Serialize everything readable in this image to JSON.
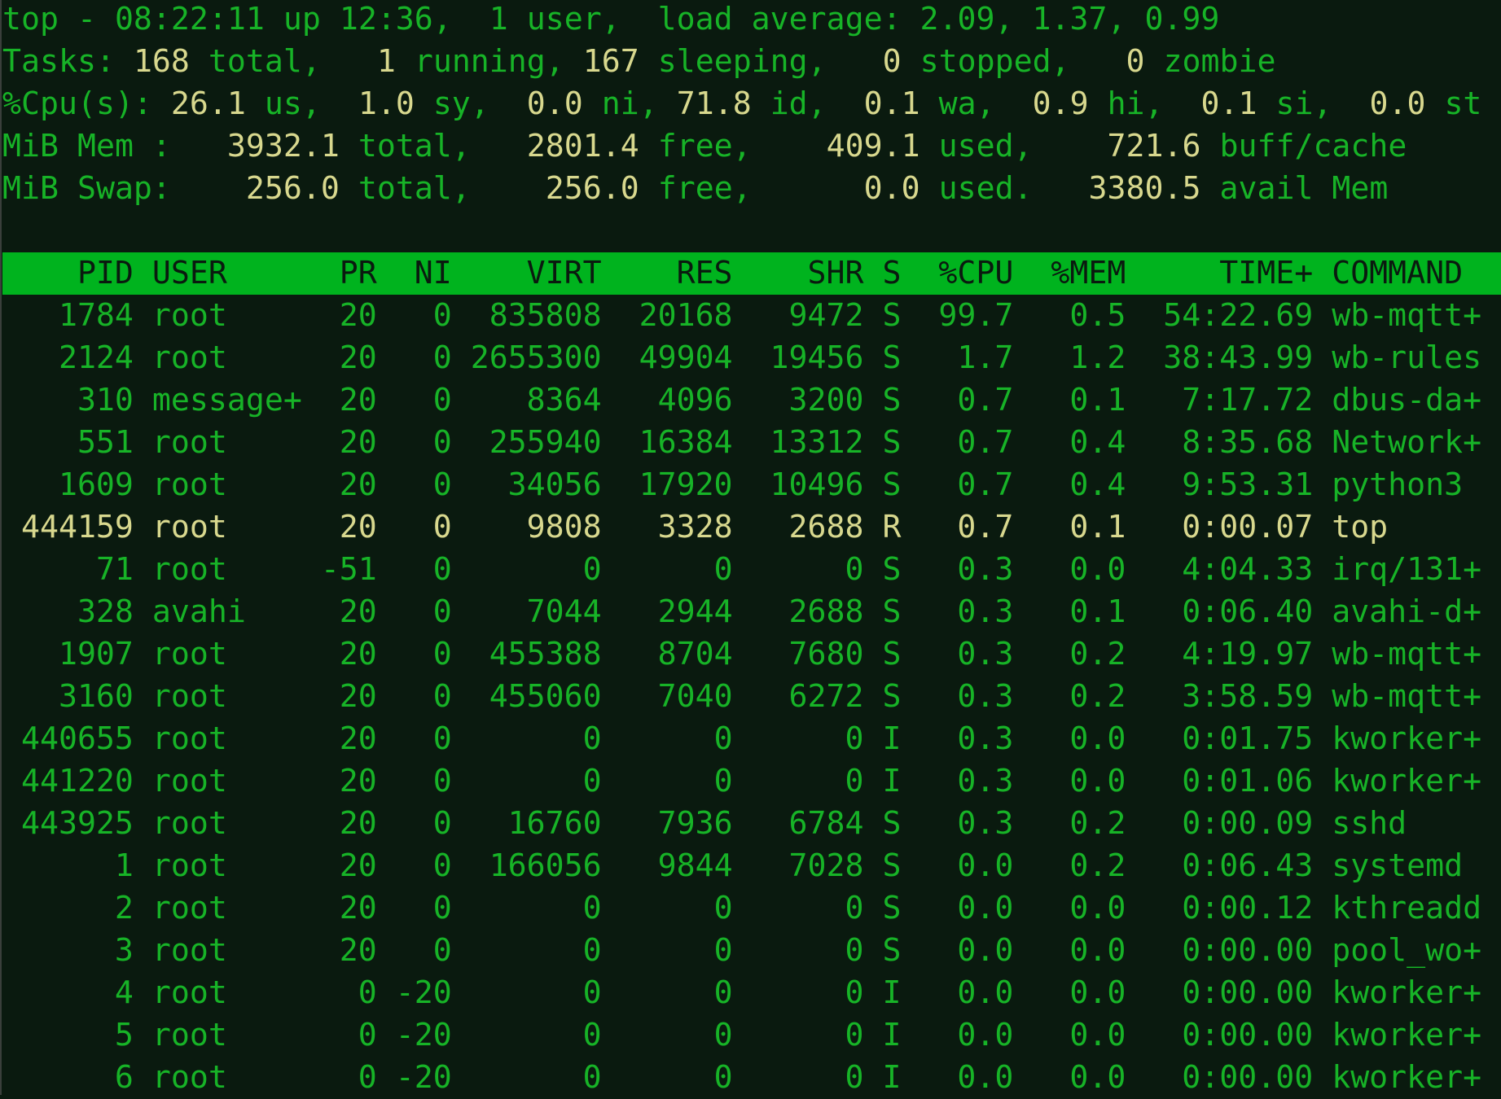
{
  "colors": {
    "background": "#0a1a0f",
    "text": "#17b327",
    "value": "#d8d88e",
    "header_bar": "#00b31e"
  },
  "summary": [
    [
      {
        "t": "top - 08:22:11 up 12:36,  1 user,  load average: 2.09, 1.37, 0.99",
        "c": "g"
      }
    ],
    [
      {
        "t": "Tasks: ",
        "c": "g"
      },
      {
        "t": "168",
        "c": "y"
      },
      {
        "t": " total,   ",
        "c": "g"
      },
      {
        "t": "1",
        "c": "y"
      },
      {
        "t": " running, ",
        "c": "g"
      },
      {
        "t": "167",
        "c": "y"
      },
      {
        "t": " sleeping,   ",
        "c": "g"
      },
      {
        "t": "0",
        "c": "y"
      },
      {
        "t": " stopped,   ",
        "c": "g"
      },
      {
        "t": "0",
        "c": "y"
      },
      {
        "t": " zombie",
        "c": "g"
      }
    ],
    [
      {
        "t": "%Cpu(s): ",
        "c": "g"
      },
      {
        "t": "26.1",
        "c": "y"
      },
      {
        "t": " us,  ",
        "c": "g"
      },
      {
        "t": "1.0",
        "c": "y"
      },
      {
        "t": " sy,  ",
        "c": "g"
      },
      {
        "t": "0.0",
        "c": "y"
      },
      {
        "t": " ni, ",
        "c": "g"
      },
      {
        "t": "71.8",
        "c": "y"
      },
      {
        "t": " id,  ",
        "c": "g"
      },
      {
        "t": "0.1",
        "c": "y"
      },
      {
        "t": " wa,  ",
        "c": "g"
      },
      {
        "t": "0.9",
        "c": "y"
      },
      {
        "t": " hi,  ",
        "c": "g"
      },
      {
        "t": "0.1",
        "c": "y"
      },
      {
        "t": " si,  ",
        "c": "g"
      },
      {
        "t": "0.0",
        "c": "y"
      },
      {
        "t": " st",
        "c": "g"
      }
    ],
    [
      {
        "t": "MiB Mem :   ",
        "c": "g"
      },
      {
        "t": "3932.1",
        "c": "y"
      },
      {
        "t": " total,   ",
        "c": "g"
      },
      {
        "t": "2801.4",
        "c": "y"
      },
      {
        "t": " free,    ",
        "c": "g"
      },
      {
        "t": "409.1",
        "c": "y"
      },
      {
        "t": " used,    ",
        "c": "g"
      },
      {
        "t": "721.6",
        "c": "y"
      },
      {
        "t": " buff/cache",
        "c": "g"
      }
    ],
    [
      {
        "t": "MiB Swap:    ",
        "c": "g"
      },
      {
        "t": "256.0",
        "c": "y"
      },
      {
        "t": " total,    ",
        "c": "g"
      },
      {
        "t": "256.0",
        "c": "y"
      },
      {
        "t": " free,      ",
        "c": "g"
      },
      {
        "t": "0.0",
        "c": "y"
      },
      {
        "t": " used.   ",
        "c": "g"
      },
      {
        "t": "3380.5",
        "c": "y"
      },
      {
        "t": " avail Mem",
        "c": "g"
      }
    ]
  ],
  "table": {
    "columns": [
      "PID",
      "USER",
      "PR",
      "NI",
      "VIRT",
      "RES",
      "SHR",
      "S",
      "%CPU",
      "%MEM",
      "TIME+",
      "COMMAND"
    ],
    "rows": [
      {
        "cells": [
          "1784",
          "root",
          "20",
          "0",
          "835808",
          "20168",
          "9472",
          "S",
          "99.7",
          "0.5",
          "54:22.69",
          "wb-mqtt+"
        ]
      },
      {
        "cells": [
          "2124",
          "root",
          "20",
          "0",
          "2655300",
          "49904",
          "19456",
          "S",
          "1.7",
          "1.2",
          "38:43.99",
          "wb-rules"
        ]
      },
      {
        "cells": [
          "310",
          "message+",
          "20",
          "0",
          "8364",
          "4096",
          "3200",
          "S",
          "0.7",
          "0.1",
          "7:17.72",
          "dbus-da+"
        ]
      },
      {
        "cells": [
          "551",
          "root",
          "20",
          "0",
          "255940",
          "16384",
          "13312",
          "S",
          "0.7",
          "0.4",
          "8:35.68",
          "Network+"
        ]
      },
      {
        "cells": [
          "1609",
          "root",
          "20",
          "0",
          "34056",
          "17920",
          "10496",
          "S",
          "0.7",
          "0.4",
          "9:53.31",
          "python3"
        ]
      },
      {
        "cells": [
          "444159",
          "root",
          "20",
          "0",
          "9808",
          "3328",
          "2688",
          "R",
          "0.7",
          "0.1",
          "0:00.07",
          "top"
        ],
        "highlight": true
      },
      {
        "cells": [
          "71",
          "root",
          "-51",
          "0",
          "0",
          "0",
          "0",
          "S",
          "0.3",
          "0.0",
          "4:04.33",
          "irq/131+"
        ]
      },
      {
        "cells": [
          "328",
          "avahi",
          "20",
          "0",
          "7044",
          "2944",
          "2688",
          "S",
          "0.3",
          "0.1",
          "0:06.40",
          "avahi-d+"
        ]
      },
      {
        "cells": [
          "1907",
          "root",
          "20",
          "0",
          "455388",
          "8704",
          "7680",
          "S",
          "0.3",
          "0.2",
          "4:19.97",
          "wb-mqtt+"
        ]
      },
      {
        "cells": [
          "3160",
          "root",
          "20",
          "0",
          "455060",
          "7040",
          "6272",
          "S",
          "0.3",
          "0.2",
          "3:58.59",
          "wb-mqtt+"
        ]
      },
      {
        "cells": [
          "440655",
          "root",
          "20",
          "0",
          "0",
          "0",
          "0",
          "I",
          "0.3",
          "0.0",
          "0:01.75",
          "kworker+"
        ]
      },
      {
        "cells": [
          "441220",
          "root",
          "20",
          "0",
          "0",
          "0",
          "0",
          "I",
          "0.3",
          "0.0",
          "0:01.06",
          "kworker+"
        ]
      },
      {
        "cells": [
          "443925",
          "root",
          "20",
          "0",
          "16760",
          "7936",
          "6784",
          "S",
          "0.3",
          "0.2",
          "0:00.09",
          "sshd"
        ]
      },
      {
        "cells": [
          "1",
          "root",
          "20",
          "0",
          "166056",
          "9844",
          "7028",
          "S",
          "0.0",
          "0.2",
          "0:06.43",
          "systemd"
        ]
      },
      {
        "cells": [
          "2",
          "root",
          "20",
          "0",
          "0",
          "0",
          "0",
          "S",
          "0.0",
          "0.0",
          "0:00.12",
          "kthreadd"
        ]
      },
      {
        "cells": [
          "3",
          "root",
          "20",
          "0",
          "0",
          "0",
          "0",
          "S",
          "0.0",
          "0.0",
          "0:00.00",
          "pool_wo+"
        ]
      },
      {
        "cells": [
          "4",
          "root",
          "0",
          "-20",
          "0",
          "0",
          "0",
          "I",
          "0.0",
          "0.0",
          "0:00.00",
          "kworker+"
        ]
      },
      {
        "cells": [
          "5",
          "root",
          "0",
          "-20",
          "0",
          "0",
          "0",
          "I",
          "0.0",
          "0.0",
          "0:00.00",
          "kworker+"
        ]
      },
      {
        "cells": [
          "6",
          "root",
          "0",
          "-20",
          "0",
          "0",
          "0",
          "I",
          "0.0",
          "0.0",
          "0:00.00",
          "kworker+"
        ]
      }
    ]
  }
}
